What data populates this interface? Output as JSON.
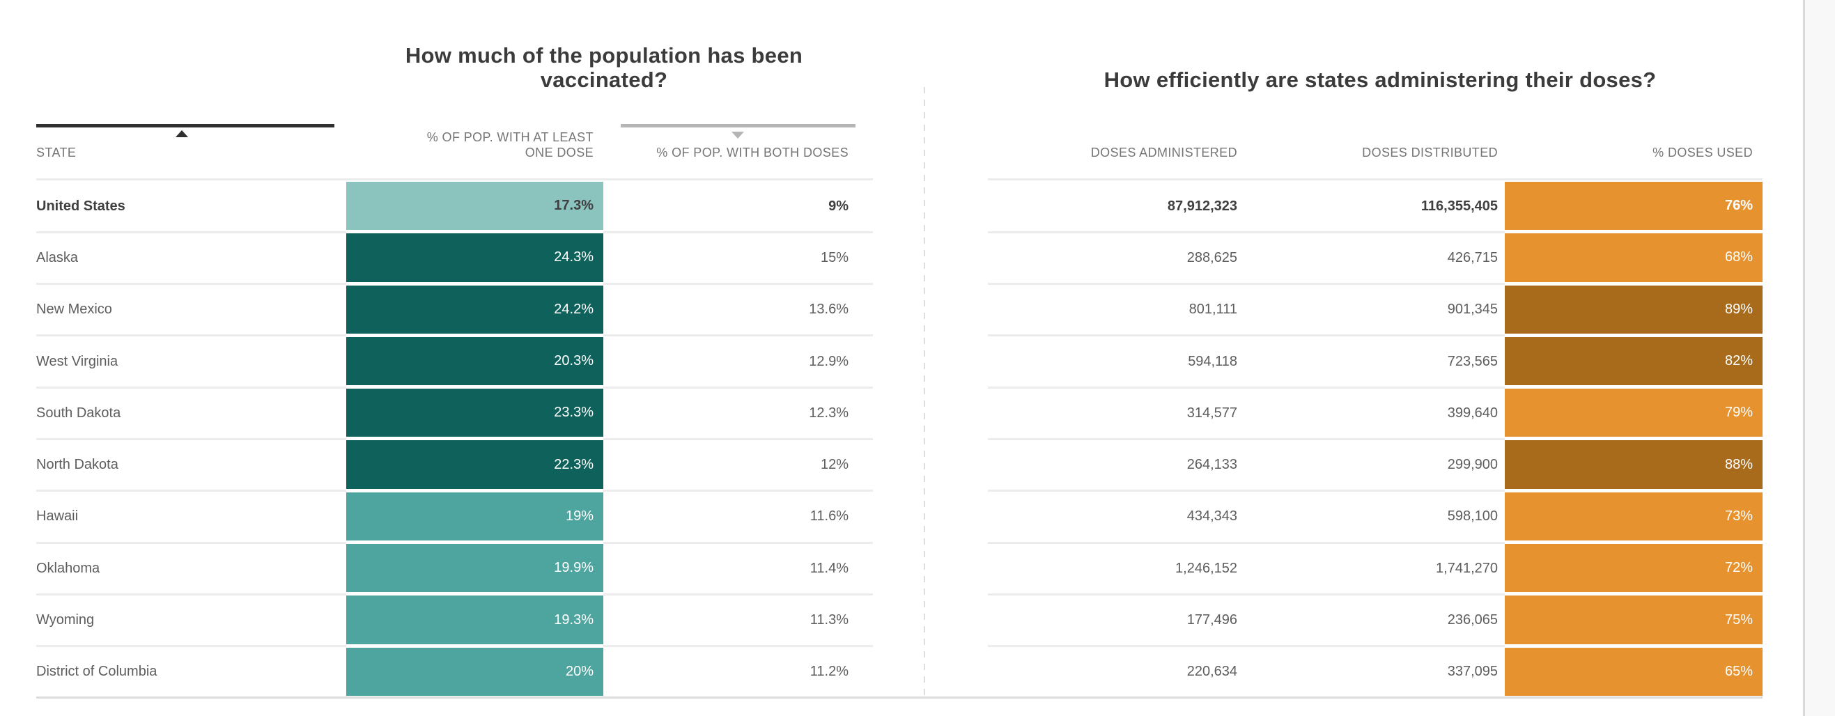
{
  "display": {
    "state_header": "STATE",
    "one_dose_header_line1": "% OF POP. WITH AT LEAST",
    "one_dose_header_line2": "ONE DOSE",
    "both_doses_header": "% OF POP. WITH BOTH DOSES",
    "administered_header": "DOSES ADMINISTERED",
    "distributed_header": "DOSES DISTRIBUTED",
    "used_header": "% DOSES USED"
  },
  "icons": {
    "state_sort": "triangle-up-icon",
    "both_doses_sort": "triangle-down-icon"
  },
  "colors": {
    "teal-light": "#8bc3bf",
    "teal-medium": "#4ea49e",
    "teal-dark": "#0e625b",
    "orange-base": "#e6922e",
    "orange-dark": "#a86b1c",
    "title-text": "#3b3b3b",
    "header-text": "#757575",
    "cell-text": "#5d5d5d",
    "bold-text": "#3f3f3f",
    "bar-text-light": "#ffffff",
    "divider": "#ececec",
    "table-edge": "#dcdcdc",
    "sort-active": "#2f2f2f",
    "sort-inactive": "#b5b5b5",
    "dashed-divider": "#dddddd",
    "gutter-bg": "#f8f8f8",
    "gutter-border": "#d9d9d9"
  },
  "chart_data": {
    "type": "table",
    "tables": [
      {
        "title": "How much of the population has been vaccinated?",
        "columns": [
          "STATE",
          "% OF POP. WITH AT LEAST ONE DOSE",
          "% OF POP. WITH BOTH DOSES"
        ],
        "sort": {
          "state": "ascending-indicator-dark",
          "both_doses": "descending-indicator-gray"
        }
      },
      {
        "title": "How efficiently are states administering their doses?",
        "columns": [
          "DOSES ADMINISTERED",
          "DOSES DISTRIBUTED",
          "% DOSES USED"
        ]
      }
    ],
    "rows": [
      {
        "state": "United States",
        "pct_one_dose": "17.3%",
        "pct_both_doses": "9%",
        "doses_administered": "87,912,323",
        "doses_distributed": "116,355,405",
        "pct_doses_used": "76%",
        "bold": true,
        "one_dose_shade": "light",
        "used_shade": "base"
      },
      {
        "state": "Alaska",
        "pct_one_dose": "24.3%",
        "pct_both_doses": "15%",
        "doses_administered": "288,625",
        "doses_distributed": "426,715",
        "pct_doses_used": "68%",
        "bold": false,
        "one_dose_shade": "dark",
        "used_shade": "base"
      },
      {
        "state": "New Mexico",
        "pct_one_dose": "24.2%",
        "pct_both_doses": "13.6%",
        "doses_administered": "801,111",
        "doses_distributed": "901,345",
        "pct_doses_used": "89%",
        "bold": false,
        "one_dose_shade": "dark",
        "used_shade": "dark"
      },
      {
        "state": "West Virginia",
        "pct_one_dose": "20.3%",
        "pct_both_doses": "12.9%",
        "doses_administered": "594,118",
        "doses_distributed": "723,565",
        "pct_doses_used": "82%",
        "bold": false,
        "one_dose_shade": "dark",
        "used_shade": "dark"
      },
      {
        "state": "South Dakota",
        "pct_one_dose": "23.3%",
        "pct_both_doses": "12.3%",
        "doses_administered": "314,577",
        "doses_distributed": "399,640",
        "pct_doses_used": "79%",
        "bold": false,
        "one_dose_shade": "dark",
        "used_shade": "base"
      },
      {
        "state": "North Dakota",
        "pct_one_dose": "22.3%",
        "pct_both_doses": "12%",
        "doses_administered": "264,133",
        "doses_distributed": "299,900",
        "pct_doses_used": "88%",
        "bold": false,
        "one_dose_shade": "dark",
        "used_shade": "dark"
      },
      {
        "state": "Hawaii",
        "pct_one_dose": "19%",
        "pct_both_doses": "11.6%",
        "doses_administered": "434,343",
        "doses_distributed": "598,100",
        "pct_doses_used": "73%",
        "bold": false,
        "one_dose_shade": "medium",
        "used_shade": "base"
      },
      {
        "state": "Oklahoma",
        "pct_one_dose": "19.9%",
        "pct_both_doses": "11.4%",
        "doses_administered": "1,246,152",
        "doses_distributed": "1,741,270",
        "pct_doses_used": "72%",
        "bold": false,
        "one_dose_shade": "medium",
        "used_shade": "base"
      },
      {
        "state": "Wyoming",
        "pct_one_dose": "19.3%",
        "pct_both_doses": "11.3%",
        "doses_administered": "177,496",
        "doses_distributed": "236,065",
        "pct_doses_used": "75%",
        "bold": false,
        "one_dose_shade": "medium",
        "used_shade": "base"
      },
      {
        "state": "District of Columbia",
        "pct_one_dose": "20%",
        "pct_both_doses": "11.2%",
        "doses_administered": "220,634",
        "doses_distributed": "337,095",
        "pct_doses_used": "65%",
        "bold": false,
        "one_dose_shade": "medium",
        "used_shade": "base"
      }
    ]
  }
}
